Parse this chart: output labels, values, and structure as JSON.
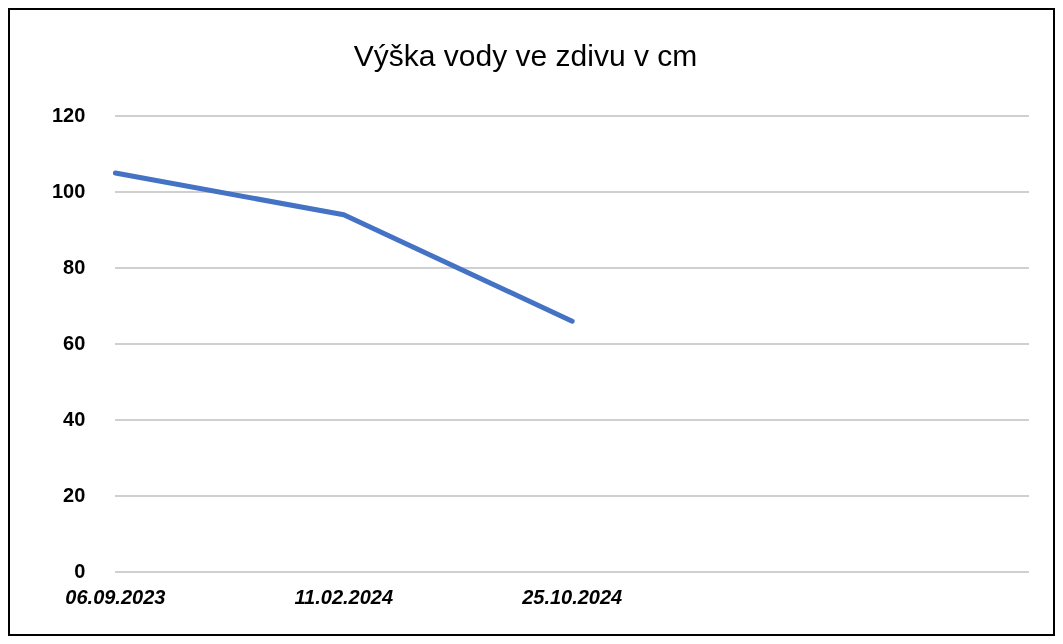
{
  "chart_data": {
    "type": "line",
    "title": "Výška vody ve zdivu v cm",
    "categories": [
      "06.09.2023",
      "11.02.2024",
      "25.10.2024",
      null,
      null
    ],
    "series": [
      {
        "color": "#4472c4",
        "values": [
          105,
          94,
          66,
          null,
          null
        ]
      }
    ],
    "ylim": [
      0,
      120
    ],
    "yticks": [
      0,
      20,
      40,
      60,
      80,
      100,
      120
    ],
    "grid": "y",
    "legend": false,
    "marker": "none",
    "line_style": "solid"
  }
}
